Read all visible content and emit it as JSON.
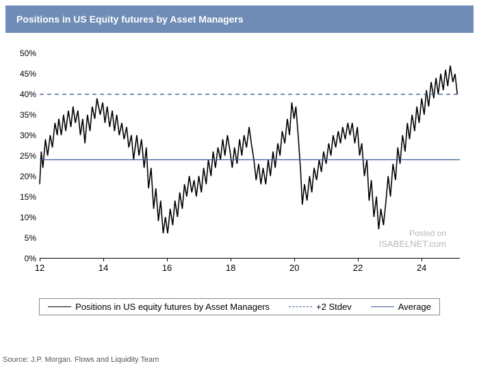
{
  "title": "Positions in US Equity futures by Asset Managers",
  "title_bar_color": "#6e8cb5",
  "title_text_color": "#ffffff",
  "chart": {
    "type": "line",
    "background_color": "#ffffff",
    "ylim": [
      0,
      50
    ],
    "ytick_step": 5,
    "ytick_suffix": "%",
    "xlim": [
      12,
      25.2
    ],
    "xticks": [
      12,
      14,
      16,
      18,
      20,
      22,
      24
    ],
    "series": [
      {
        "name": "positions",
        "label": "Positions in US equity futures by Asset Managers",
        "color": "#000000",
        "line_width": 1.6,
        "dash": "none",
        "data": [
          [
            12.0,
            18
          ],
          [
            12.05,
            26
          ],
          [
            12.1,
            22
          ],
          [
            12.18,
            29
          ],
          [
            12.25,
            25
          ],
          [
            12.33,
            30
          ],
          [
            12.4,
            27
          ],
          [
            12.48,
            33
          ],
          [
            12.55,
            30
          ],
          [
            12.6,
            34
          ],
          [
            12.68,
            30
          ],
          [
            12.75,
            35
          ],
          [
            12.82,
            31
          ],
          [
            12.9,
            36
          ],
          [
            12.98,
            32
          ],
          [
            13.05,
            37
          ],
          [
            13.12,
            33
          ],
          [
            13.2,
            36
          ],
          [
            13.28,
            30
          ],
          [
            13.35,
            34
          ],
          [
            13.42,
            28
          ],
          [
            13.5,
            35
          ],
          [
            13.58,
            31
          ],
          [
            13.65,
            37
          ],
          [
            13.73,
            34
          ],
          [
            13.8,
            39
          ],
          [
            13.9,
            35
          ],
          [
            13.98,
            38
          ],
          [
            14.05,
            33
          ],
          [
            14.12,
            37
          ],
          [
            14.2,
            32
          ],
          [
            14.28,
            36
          ],
          [
            14.35,
            31
          ],
          [
            14.42,
            35
          ],
          [
            14.5,
            30
          ],
          [
            14.58,
            33
          ],
          [
            14.65,
            29
          ],
          [
            14.73,
            32
          ],
          [
            14.8,
            27
          ],
          [
            14.88,
            30
          ],
          [
            14.95,
            24
          ],
          [
            15.05,
            30
          ],
          [
            15.12,
            25
          ],
          [
            15.2,
            29
          ],
          [
            15.28,
            22
          ],
          [
            15.35,
            27
          ],
          [
            15.42,
            17
          ],
          [
            15.5,
            22
          ],
          [
            15.58,
            12
          ],
          [
            15.65,
            17
          ],
          [
            15.73,
            9
          ],
          [
            15.8,
            14
          ],
          [
            15.88,
            6
          ],
          [
            15.95,
            10
          ],
          [
            16.02,
            6
          ],
          [
            16.1,
            12
          ],
          [
            16.18,
            8
          ],
          [
            16.25,
            14
          ],
          [
            16.33,
            10
          ],
          [
            16.4,
            16
          ],
          [
            16.48,
            12
          ],
          [
            16.55,
            18
          ],
          [
            16.62,
            15
          ],
          [
            16.7,
            20
          ],
          [
            16.78,
            16
          ],
          [
            16.85,
            19
          ],
          [
            16.92,
            15
          ],
          [
            17.0,
            20
          ],
          [
            17.08,
            16
          ],
          [
            17.15,
            22
          ],
          [
            17.23,
            18
          ],
          [
            17.3,
            24
          ],
          [
            17.38,
            20
          ],
          [
            17.45,
            26
          ],
          [
            17.52,
            22
          ],
          [
            17.6,
            27
          ],
          [
            17.68,
            24
          ],
          [
            17.75,
            29
          ],
          [
            17.82,
            25
          ],
          [
            17.9,
            30
          ],
          [
            17.98,
            26
          ],
          [
            18.05,
            22
          ],
          [
            18.12,
            27
          ],
          [
            18.2,
            23
          ],
          [
            18.28,
            29
          ],
          [
            18.35,
            25
          ],
          [
            18.42,
            30
          ],
          [
            18.5,
            27
          ],
          [
            18.58,
            32
          ],
          [
            18.65,
            28
          ],
          [
            18.73,
            24
          ],
          [
            18.8,
            19
          ],
          [
            18.88,
            23
          ],
          [
            18.95,
            18
          ],
          [
            19.02,
            22
          ],
          [
            19.1,
            18
          ],
          [
            19.18,
            24
          ],
          [
            19.25,
            20
          ],
          [
            19.33,
            26
          ],
          [
            19.4,
            22
          ],
          [
            19.48,
            28
          ],
          [
            19.55,
            25
          ],
          [
            19.62,
            31
          ],
          [
            19.7,
            28
          ],
          [
            19.78,
            34
          ],
          [
            19.85,
            30
          ],
          [
            19.92,
            38
          ],
          [
            19.99,
            34
          ],
          [
            20.05,
            37
          ],
          [
            20.12,
            30
          ],
          [
            20.2,
            21
          ],
          [
            20.25,
            13
          ],
          [
            20.32,
            18
          ],
          [
            20.4,
            14
          ],
          [
            20.48,
            20
          ],
          [
            20.55,
            16
          ],
          [
            20.62,
            22
          ],
          [
            20.7,
            19
          ],
          [
            20.78,
            24
          ],
          [
            20.85,
            21
          ],
          [
            20.92,
            26
          ],
          [
            21.0,
            23
          ],
          [
            21.08,
            28
          ],
          [
            21.15,
            25
          ],
          [
            21.22,
            30
          ],
          [
            21.3,
            27
          ],
          [
            21.38,
            31
          ],
          [
            21.45,
            28
          ],
          [
            21.52,
            32
          ],
          [
            21.6,
            29
          ],
          [
            21.68,
            33
          ],
          [
            21.75,
            30
          ],
          [
            21.82,
            33
          ],
          [
            21.9,
            28
          ],
          [
            21.98,
            32
          ],
          [
            22.05,
            25
          ],
          [
            22.12,
            28
          ],
          [
            22.2,
            20
          ],
          [
            22.28,
            24
          ],
          [
            22.35,
            14
          ],
          [
            22.42,
            19
          ],
          [
            22.5,
            10
          ],
          [
            22.58,
            15
          ],
          [
            22.65,
            7
          ],
          [
            22.72,
            12
          ],
          [
            22.8,
            8
          ],
          [
            22.88,
            14
          ],
          [
            22.95,
            20
          ],
          [
            23.02,
            15
          ],
          [
            23.1,
            23
          ],
          [
            23.18,
            19
          ],
          [
            23.25,
            27
          ],
          [
            23.32,
            23
          ],
          [
            23.4,
            30
          ],
          [
            23.48,
            26
          ],
          [
            23.55,
            33
          ],
          [
            23.62,
            29
          ],
          [
            23.7,
            35
          ],
          [
            23.78,
            31
          ],
          [
            23.85,
            37
          ],
          [
            23.92,
            33
          ],
          [
            24.0,
            39
          ],
          [
            24.08,
            35
          ],
          [
            24.15,
            41
          ],
          [
            24.22,
            37
          ],
          [
            24.3,
            43
          ],
          [
            24.38,
            39
          ],
          [
            24.45,
            44
          ],
          [
            24.52,
            40
          ],
          [
            24.6,
            45
          ],
          [
            24.68,
            41
          ],
          [
            24.75,
            46
          ],
          [
            24.82,
            42
          ],
          [
            24.9,
            47
          ],
          [
            24.98,
            43
          ],
          [
            25.05,
            45
          ],
          [
            25.12,
            40
          ]
        ]
      },
      {
        "name": "plus_2_stdev",
        "label": "+2 Stdev",
        "color": "#3b5998",
        "line_width": 1.4,
        "dash": "6,5",
        "value": 40
      },
      {
        "name": "average",
        "label": "Average",
        "color": "#3b5998",
        "line_width": 1.2,
        "dash": "none",
        "value": 24
      }
    ]
  },
  "legend_border_color": "#888888",
  "watermark": {
    "line1": "Posted on",
    "line2": "ISABELNET.com",
    "color": "#b8b8b8"
  },
  "source": "Source: J.P. Morgan. Flows and Liquidity Team",
  "label_fontsize": 12
}
